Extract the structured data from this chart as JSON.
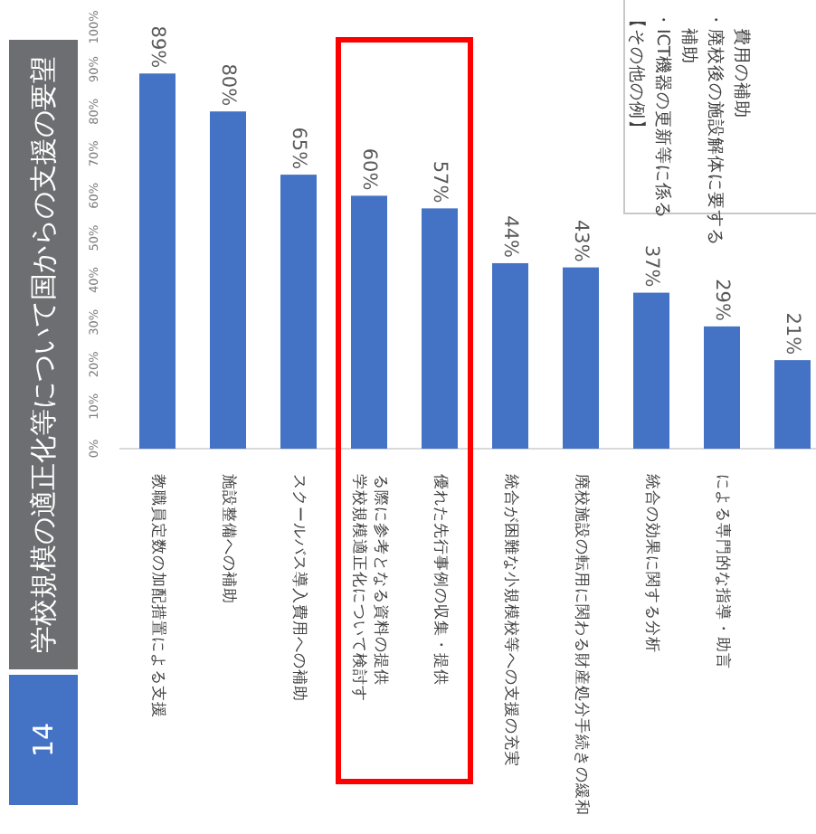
{
  "chart_data": {
    "type": "bar",
    "title": "学校規模の適正化等について国からの支援の要望",
    "categories": [
      "教職員定数の加配措置による支援",
      "施設整備への補助",
      "スクールバス導入費用への補助",
      "学校規模適正化について検討する際に参考となる資料の提供",
      "優れた先行事例の収集・提供",
      "統合が困難な小規模校等への支援の充実",
      "廃校施設の転用に関わる財産処分手続きの緩和",
      "統合の効果に関する分析",
      "による専門的な指導・助言",
      null
    ],
    "values": [
      89,
      80,
      65,
      60,
      57,
      44,
      43,
      37,
      29,
      21
    ],
    "value_labels": [
      "89%",
      "80%",
      "65%",
      "60%",
      "57%",
      "44%",
      "43%",
      "37%",
      "29%",
      "21%"
    ],
    "color": "#4472c4",
    "grid": false,
    "ylim": [
      0,
      100
    ],
    "yticks": [
      {
        "value": 0,
        "label": "0%"
      },
      {
        "value": 10,
        "label": "10%"
      },
      {
        "value": 20,
        "label": "20%"
      },
      {
        "value": 30,
        "label": "30%"
      },
      {
        "value": 40,
        "label": "40%"
      },
      {
        "value": 50,
        "label": "50%"
      },
      {
        "value": 60,
        "label": "60%"
      },
      {
        "value": 70,
        "label": "70%"
      },
      {
        "value": 80,
        "label": "80%"
      },
      {
        "value": 90,
        "label": "90%"
      },
      {
        "value": 100,
        "label": "100%"
      }
    ],
    "annotations": [
      "14",
      "【その他の例】",
      "・ICT機器の更新等に係る補助",
      "・廃校後の施設解体に要する費用の補助"
    ]
  }
}
